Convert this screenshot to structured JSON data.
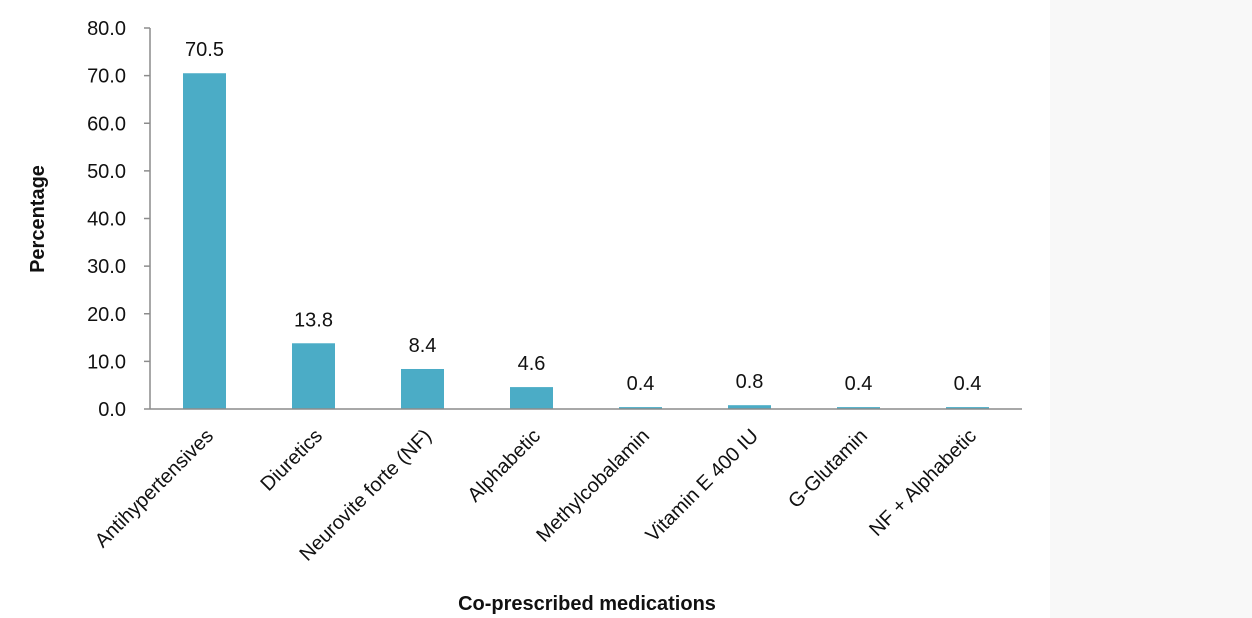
{
  "colors": {
    "bar": "#4bacc6",
    "axis": "#8c8c8c",
    "text": "#111111",
    "panel": "#f8f8f8"
  },
  "chart_data": {
    "type": "bar",
    "title": "",
    "xlabel": "Co-prescribed medications",
    "ylabel": "Percentage",
    "ylim": [
      0,
      80
    ],
    "yticks": [
      "0.0",
      "10.0",
      "20.0",
      "30.0",
      "40.0",
      "50.0",
      "60.0",
      "70.0",
      "80.0"
    ],
    "grid": false,
    "legend": "none",
    "categories": [
      "Antihypertensives",
      "Diuretics",
      "Neurovite forte (NF)",
      "Alphabetic",
      "Methylcobalamin",
      "Vitamin E 400 IU",
      "G-Glutamin",
      "NF + Alphabetic"
    ],
    "values": [
      70.5,
      13.8,
      8.4,
      4.6,
      0.4,
      0.8,
      0.4,
      0.4
    ],
    "data_labels": [
      "70.5",
      "13.8",
      "8.4",
      "4.6",
      "0.4",
      "0.8",
      "0.4",
      "0.4"
    ]
  }
}
